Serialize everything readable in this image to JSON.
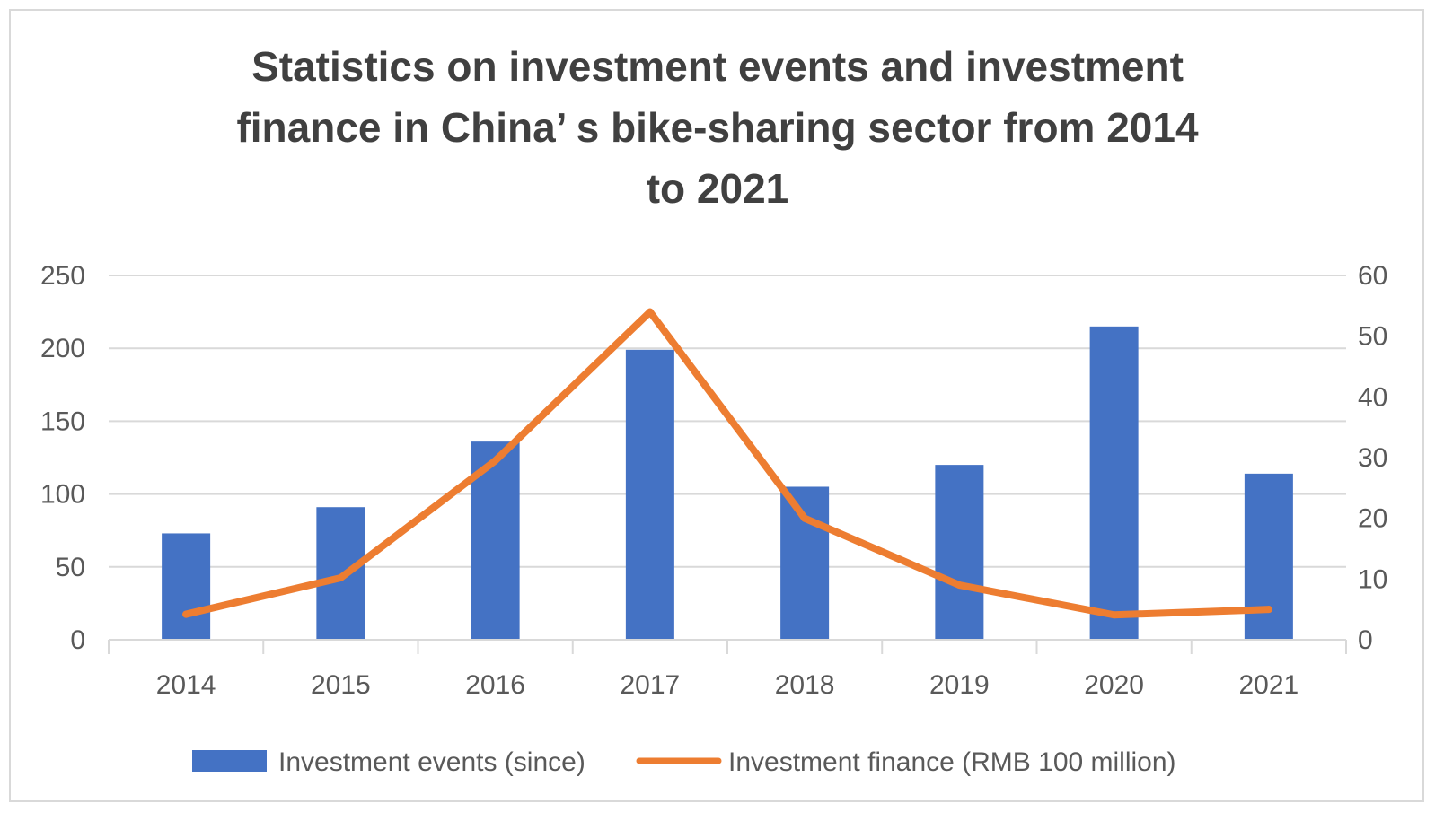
{
  "chart_data": {
    "type": "bar",
    "title_lines": [
      "Statistics on investment events and investment",
      "finance in China’ s bike-sharing sector from 2014",
      "to 2021"
    ],
    "categories": [
      "2014",
      "2015",
      "2016",
      "2017",
      "2018",
      "2019",
      "2020",
      "2021"
    ],
    "series": [
      {
        "name": "Investment events (since)",
        "type": "bar",
        "axis": "left",
        "color": "#4472c4",
        "values": [
          73,
          91,
          136,
          199,
          105,
          120,
          215,
          114
        ]
      },
      {
        "name": "Investment finance (RMB 100 million)",
        "type": "line",
        "axis": "right",
        "color": "#ed7d31",
        "values": [
          4.2,
          10.2,
          29.5,
          54.0,
          20.0,
          9.0,
          4.1,
          5.0
        ]
      }
    ],
    "ylim_left": [
      0,
      250
    ],
    "yticks_left": [
      "0",
      "50",
      "100",
      "150",
      "200",
      "250"
    ],
    "ylim_right": [
      0,
      60
    ],
    "yticks_right": [
      "0",
      "10",
      "20",
      "30",
      "40",
      "50",
      "60"
    ],
    "grid": true,
    "legend_position": "bottom"
  }
}
